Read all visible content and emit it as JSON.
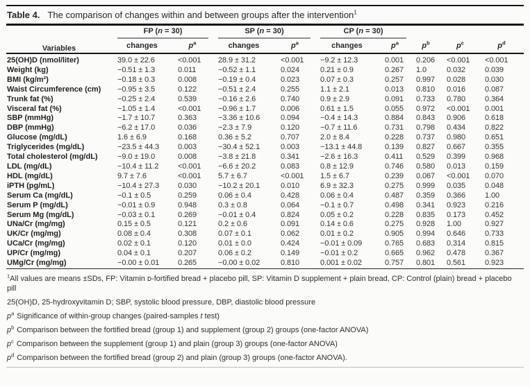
{
  "caption": {
    "label": "Table 4.",
    "text": "The comparison of changes within and between groups after the intervention",
    "sup": "1"
  },
  "header": {
    "variables": "Variables",
    "groups": [
      {
        "prefix": "FP (",
        "n": "n",
        "suffix": " = 30)"
      },
      {
        "prefix": "SP (",
        "n": "n",
        "suffix": " = 30)"
      },
      {
        "prefix": "CP (",
        "n": "n",
        "suffix": " = 30)"
      }
    ],
    "sub": {
      "changes": "changes",
      "p": "p",
      "sups": [
        "a",
        "b",
        "c",
        "d"
      ]
    }
  },
  "rows": [
    {
      "label": "25(OH)D (nmol/liter)",
      "fp_c": "39.0 ± 22.6",
      "fp_p": "<0.001",
      "sp_c": "28.9 ± 31.2",
      "sp_p": "<0.001",
      "cp_c": "−9.2 ± 12.3",
      "cp_p": "0.001",
      "pb": "0.206",
      "pc": "<0.001",
      "pd": "<0.001"
    },
    {
      "label": "Weight (kg)",
      "fp_c": "−0.51 ± 1.3",
      "fp_p": "0.011",
      "sp_c": "−0.52 ± 1.1",
      "sp_p": "0.024",
      "cp_c": "0.21 ± 0.9",
      "cp_p": "0.267",
      "pb": "1.0",
      "pc": "0.032",
      "pd": "0.039"
    },
    {
      "label": "BMI (kg/m²)",
      "fp_c": "−0.18 ± 0.3",
      "fp_p": "0.008",
      "sp_c": "−0.19 ± 0.4",
      "sp_p": "0.023",
      "cp_c": "0.07 ± 0.3",
      "cp_p": "0.257",
      "pb": "0.997",
      "pc": "0.028",
      "pd": "0.030"
    },
    {
      "label": "Waist Circumference (cm)",
      "fp_c": "−0.95 ± 3.5",
      "fp_p": "0.122",
      "sp_c": "−0.51 ± 2.4",
      "sp_p": "0.255",
      "cp_c": "1.1 ± 2.1",
      "cp_p": "0.013",
      "pb": "0.810",
      "pc": "0.016",
      "pd": "0.087"
    },
    {
      "label": "Trunk fat (%)",
      "fp_c": "−0.25 ± 2.4",
      "fp_p": "0.539",
      "sp_c": "−0.16 ± 2.6",
      "sp_p": "0.740",
      "cp_c": "0.9 ± 2.9",
      "cp_p": "0.091",
      "pb": "0.733",
      "pc": "0.780",
      "pd": "0.364"
    },
    {
      "label": "Visceral fat (%)",
      "fp_c": "−1.05 ± 1.4",
      "fp_p": "<0.001",
      "sp_c": "−0.96 ± 1.7",
      "sp_p": "0.006",
      "cp_c": "0.61 ± 1.5",
      "cp_p": "0.055",
      "pb": "0.972",
      "pc": "<0.001",
      "pd": "0.001"
    },
    {
      "label": "SBP (mmHg)",
      "fp_c": "−1.7 ± 10.7",
      "fp_p": "0.363",
      "sp_c": "−3.36 ± 10.6",
      "sp_p": "0.094",
      "cp_c": "−0.4 ± 14.3",
      "cp_p": "0.884",
      "pb": "0.843",
      "pc": "0.906",
      "pd": "0.618"
    },
    {
      "label": "DBP (mmHg)",
      "fp_c": "−6.2 ± 17.0",
      "fp_p": "0.036",
      "sp_c": "−2.3 ± 7.9",
      "sp_p": "0.120",
      "cp_c": "−0.7 ± 11.6",
      "cp_p": "0.731",
      "pb": "0.798",
      "pc": "0.434",
      "pd": "0.822"
    },
    {
      "label": "Glucose (mg/dL)",
      "fp_c": "1.6 ± 6.9",
      "fp_p": "0.168",
      "sp_c": "0.36 ± 5.2",
      "sp_p": "0.707",
      "cp_c": "2.0 ± 8.4",
      "cp_p": "0.228",
      "pb": "0.737",
      "pc": "0.980",
      "pd": "0.651"
    },
    {
      "label": "Triglycerides (mg/dL)",
      "fp_c": "−23.5 ± 44.3",
      "fp_p": "0.003",
      "sp_c": "−30.4 ± 52.1",
      "sp_p": "0.003",
      "cp_c": "−13.1 ± 44.8",
      "cp_p": "0.139",
      "pb": "0.827",
      "pc": "0.667",
      "pd": "0.355"
    },
    {
      "label": "Total cholesterol (mg/dL)",
      "fp_c": "−9.0 ± 19.0",
      "fp_p": "0.008",
      "sp_c": "−3.8 ± 21.8",
      "sp_p": "0.341",
      "cp_c": "−2.6 ± 16.3",
      "cp_p": "0.411",
      "pb": "0.529",
      "pc": "0.399",
      "pd": "0.968"
    },
    {
      "label": "LDL (mg/dL)",
      "fp_c": "−10.4 ± 11.2",
      "fp_p": "<0.001",
      "sp_c": "−6.6 ± 20.2",
      "sp_p": "0.083",
      "cp_c": "0.8 ± 12.9",
      "cp_p": "0.746",
      "pb": "0.580",
      "pc": "0.013",
      "pd": "0.159"
    },
    {
      "label": "HDL (mg/dL)",
      "fp_c": "9.7 ± 7.6",
      "fp_p": "<0.001",
      "sp_c": "5.7 ± 6.7",
      "sp_p": "<0.001",
      "cp_c": "1.5 ± 6.7",
      "cp_p": "0.239",
      "pb": "0.067",
      "pc": "<0.001",
      "pd": "0.070"
    },
    {
      "label": "iPTH (pg/mL)",
      "fp_c": "−10.4 ± 27.3",
      "fp_p": "0.030",
      "sp_c": "−10.2 ± 20.1",
      "sp_p": "0.010",
      "cp_c": "6.9 ± 32.3",
      "cp_p": "0.275",
      "pb": "0.999",
      "pc": "0.035",
      "pd": "0.048"
    },
    {
      "label": "Serum Ca (mg/dL)",
      "fp_c": "−0.1 ± 0.5",
      "fp_p": "0.259",
      "sp_c": "0.06 ± 0.4",
      "sp_p": "0.428",
      "cp_c": "0.06 ± 0.4",
      "cp_p": "0.487",
      "pb": "0.359",
      "pc": "0.366",
      "pd": "1.00"
    },
    {
      "label": "Serum P (mg/dL)",
      "fp_c": "−0.01 ± 0.9",
      "fp_p": "0.948",
      "sp_c": "0.3 ± 0.8",
      "sp_p": "0.064",
      "cp_c": "−0.1 ± 0.7",
      "cp_p": "0.498",
      "pb": "0.341",
      "pc": "0.923",
      "pd": "0.216"
    },
    {
      "label": "Serum Mg (mg/dL)",
      "fp_c": "−0.03 ± 0.1",
      "fp_p": "0.269",
      "sp_c": "−0.01 ± 0.4",
      "sp_p": "0.824",
      "cp_c": "0.05 ± 0.2",
      "cp_p": "0.228",
      "pb": "0.835",
      "pc": "0.173",
      "pd": "0.452"
    },
    {
      "label": "UNa/Cr (mg/mg)",
      "fp_c": "0.15 ± 0.5",
      "fp_p": "0.121",
      "sp_c": "0.2 ± 0.6",
      "sp_p": "0.091",
      "cp_c": "0.14 ± 0.6",
      "cp_p": "0.275",
      "pb": "0.928",
      "pc": "1.00",
      "pd": "0.927"
    },
    {
      "label": "UK/Cr (mg/mg)",
      "fp_c": "0.08 ± 0.4",
      "fp_p": "0.308",
      "sp_c": "0.07 ± 0.1",
      "sp_p": "0.062",
      "cp_c": "0.01 ± 0.2",
      "cp_p": "0.905",
      "pb": "0.994",
      "pc": "0.646",
      "pd": "0.733"
    },
    {
      "label": "UCa/Cr (mg/mg)",
      "fp_c": "0.02 ± 0.1",
      "fp_p": "0.120",
      "sp_c": "0.01 ± 0.0",
      "sp_p": "0.424",
      "cp_c": "−0.01 ± 0.09",
      "cp_p": "0.765",
      "pb": "0.683",
      "pc": "0.314",
      "pd": "0.815"
    },
    {
      "label": "UP/Cr (mg/mg)",
      "fp_c": "0.04 ± 0.1",
      "fp_p": "0.207",
      "sp_c": "0.06 ± 0.2",
      "sp_p": "0.149",
      "cp_c": "−0.01 ± 0.2",
      "cp_p": "0.665",
      "pb": "0.962",
      "pc": "0.478",
      "pd": "0.367"
    },
    {
      "label": "UMg/Cr (mg/mg)",
      "fp_c": "−0.00 ± 0.01",
      "fp_p": "0.265",
      "sp_c": "−0.00 ± 0.02",
      "sp_p": "0.810",
      "cp_c": "0.001 ± 0.02",
      "cp_p": "0.757",
      "pb": "0.801",
      "pc": "0.561",
      "pd": "0.923"
    }
  ],
  "footnotes": {
    "f1": {
      "sup": "1",
      "text": "All values are means ±SDs, FP: Vitamin ᴅ-fortified bread + placebo pill, SP: Vitamin D supplement + plain bread, CP: Control (plain) bread + placebo pill"
    },
    "f2": {
      "text": "25(OH)D, 25-hydroxyvitamin D; SBP, systolic blood pressure, DBP, diastolic blood pressure"
    },
    "f3": {
      "p": "p",
      "sup": "a",
      "pre": "Significance of within-group changes (paired-samples ",
      "it": "t",
      "post": " test)"
    },
    "f4": {
      "p": "p",
      "sup": "b",
      "text": "Comparison between the fortified bread (group 1) and supplement (group 2) groups (one-factor ANOVA)"
    },
    "f5": {
      "p": "p",
      "sup": "c",
      "text": "Comparison between the supplement (group 1) and plain (group 3) groups (one-factor ANOVA)"
    },
    "f6": {
      "p": "p",
      "sup": "d",
      "text": "Comparison between the fortified bread (group 2) and plain (group 3) groups (one-factor ANOVA)."
    }
  }
}
